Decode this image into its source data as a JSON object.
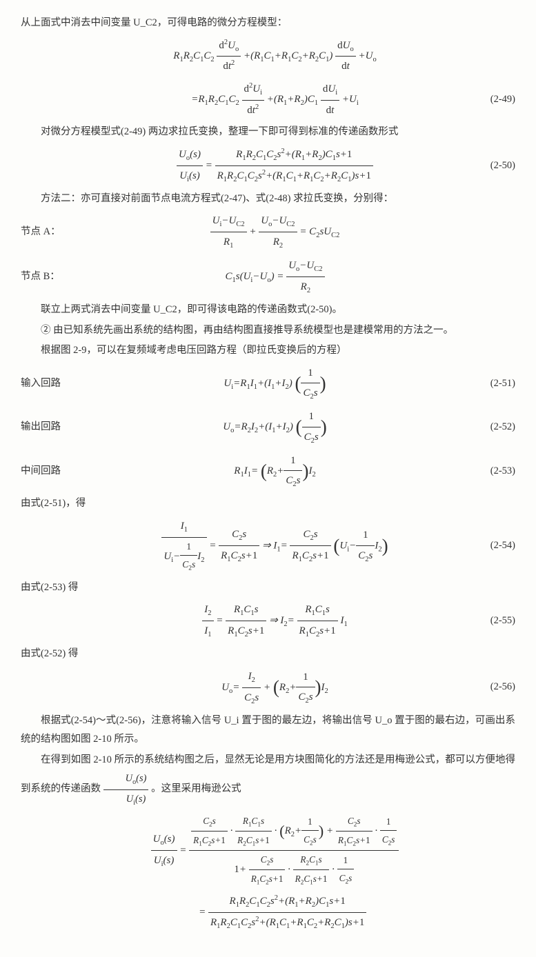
{
  "p1": "从上面式中消去中间变量 U_C2，可得电路的微分方程模型：",
  "eq249": {
    "line1": "R_1R_2C_1C_2\\frac{d^2U_o}{dt^2}+(R_1C_1+R_1C_2+R_2C_1)\\frac{dU_o}{dt}+U_o",
    "line2": "=R_1R_2C_1C_2\\frac{d^2U_i}{dt^2}+(R_1+R_2)C_1\\frac{dU_i}{dt}+U_i",
    "num": "(2-49)"
  },
  "p2": "对微分方程模型式(2-49) 两边求拉氏变换，整理一下即可得到标准的传递函数形式",
  "eq250": {
    "body": "\\frac{U_o(s)}{U_i(s)}=\\frac{R_1R_2C_1C_2s^2+(R_1+R_2)C_1s+1}{R_1R_2C_1C_2s^2+(R_1C_1+R_1C_2+R_2C_1)s+1}",
    "num": "(2-50)"
  },
  "p3": "方法二：亦可直接对前面节点电流方程式(2-47)、式(2-48) 求拉氏变换，分别得：",
  "nodeA": {
    "label": "节点 A：",
    "body": "\\frac{U_i-U_{C2}}{R_1}+\\frac{U_o-U_{C2}}{R_2}=C_2sU_{C2}"
  },
  "nodeB": {
    "label": "节点 B：",
    "body": "C_1s(U_i-U_o)=\\frac{U_o-U_{C2}}{R_2}"
  },
  "p4": "联立上两式消去中间变量 U_C2，即可得该电路的传递函数式(2-50)。",
  "p5": "② 由已知系统先画出系统的结构图，再由结构图直接推导系统模型也是建模常用的方法之一。",
  "p6": "根据图 2-9，可以在复频域考虑电压回路方程（即拉氏变换后的方程）",
  "eq251": {
    "label": "输入回路",
    "num": "(2-51)"
  },
  "eq252": {
    "label": "输出回路",
    "num": "(2-52)"
  },
  "eq253": {
    "label": "中间回路",
    "num": "(2-53)"
  },
  "p7": "由式(2-51)，得",
  "eq254": {
    "num": "(2-54)"
  },
  "p8": "由式(2-53) 得",
  "eq255": {
    "num": "(2-55)"
  },
  "p9": "由式(2-52) 得",
  "eq256": {
    "num": "(2-56)"
  },
  "p10a": "根据式(2-54)～式(2-56)，注意将输入信号 U_i 置于图的最左边，将输出信号 U_o 置于图的最右边，可画出系统的结构图如图 2-10 所示。",
  "p10b_part1": "在得到如图 2-10 所示的系统结构图之后，显然无论是用方块图简化的方法还是用梅逊公式，都可以方便地得到系统的传递函数",
  "p10b_part2": "。这里采用梅逊公式"
}
